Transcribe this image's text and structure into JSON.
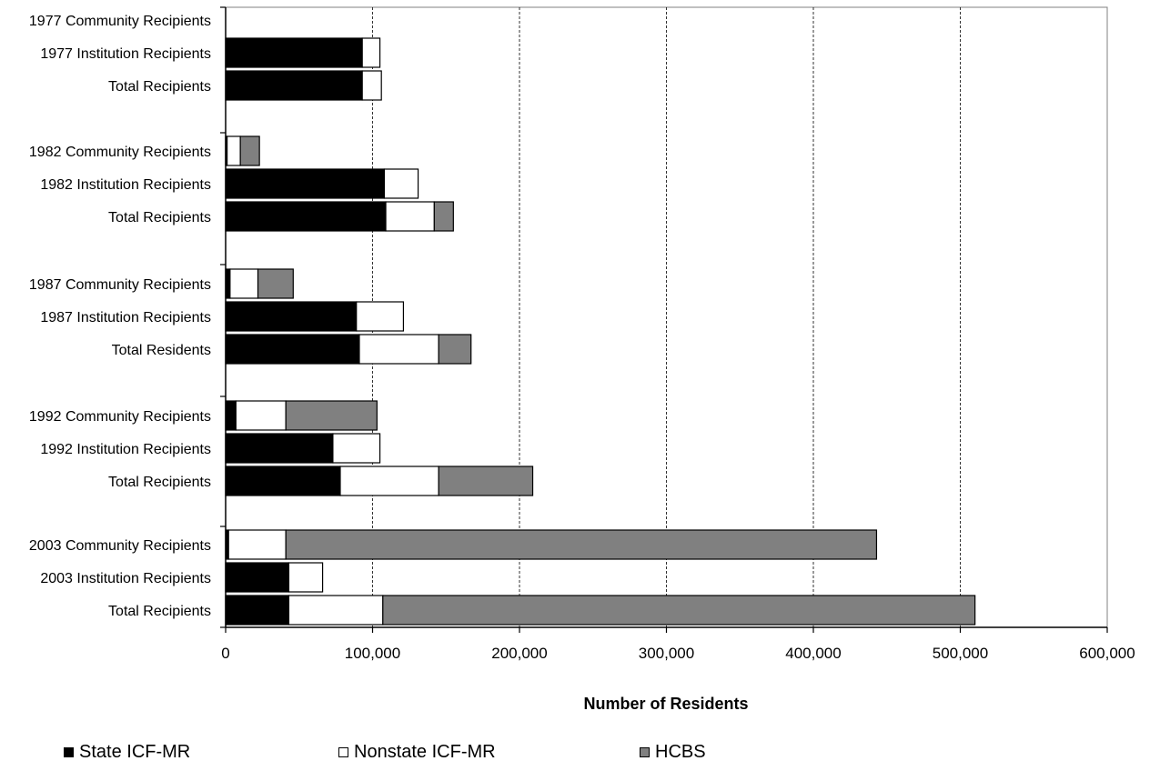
{
  "chart_data": {
    "type": "bar",
    "orientation": "horizontal",
    "stacked": true,
    "xlabel": "Number of Residents",
    "xlim": [
      0,
      600000
    ],
    "x_ticks": [
      "0",
      "100,000",
      "200,000",
      "300,000",
      "400,000",
      "500,000",
      "600,000"
    ],
    "grid": "vertical dashed",
    "legend_position": "bottom",
    "categories": [
      "1977 Community Recipients",
      "1977 Institution Recipients",
      "Total Recipients",
      "1982 Community Recipients",
      "1982 Institution Recipients",
      "Total Recipients",
      "1987 Community Recipients",
      "1987 Institution Recipients",
      "Total Residents",
      "1992 Community Recipients",
      "1992 Institution Recipients",
      "Total Recipients",
      "2003 Community Recipients",
      "2003 Institution Recipients",
      "Total Recipients"
    ],
    "groups": [
      [
        0,
        1,
        2
      ],
      [
        3,
        4,
        5
      ],
      [
        6,
        7,
        8
      ],
      [
        9,
        10,
        11
      ],
      [
        12,
        13,
        14
      ]
    ],
    "series": [
      {
        "name": "State ICF-MR",
        "color": "#000000",
        "values": [
          0,
          93000,
          93000,
          1000,
          108000,
          109000,
          3000,
          89000,
          91000,
          7000,
          73000,
          78000,
          2000,
          43000,
          43000
        ]
      },
      {
        "name": "Nonstate ICF-MR",
        "color": "#ffffff",
        "values": [
          0,
          12000,
          13000,
          9000,
          23000,
          33000,
          19000,
          32000,
          54000,
          34000,
          32000,
          67000,
          39000,
          23000,
          64000
        ]
      },
      {
        "name": "HCBS",
        "color": "#808080",
        "values": [
          0,
          0,
          0,
          13000,
          0,
          13000,
          24000,
          0,
          22000,
          62000,
          0,
          64000,
          402000,
          0,
          403000
        ]
      }
    ]
  },
  "legend": {
    "items": [
      {
        "label": "State ICF-MR",
        "color": "#000000"
      },
      {
        "label": "Nonstate ICF-MR",
        "color": "#ffffff"
      },
      {
        "label": "HCBS",
        "color": "#808080"
      }
    ]
  }
}
